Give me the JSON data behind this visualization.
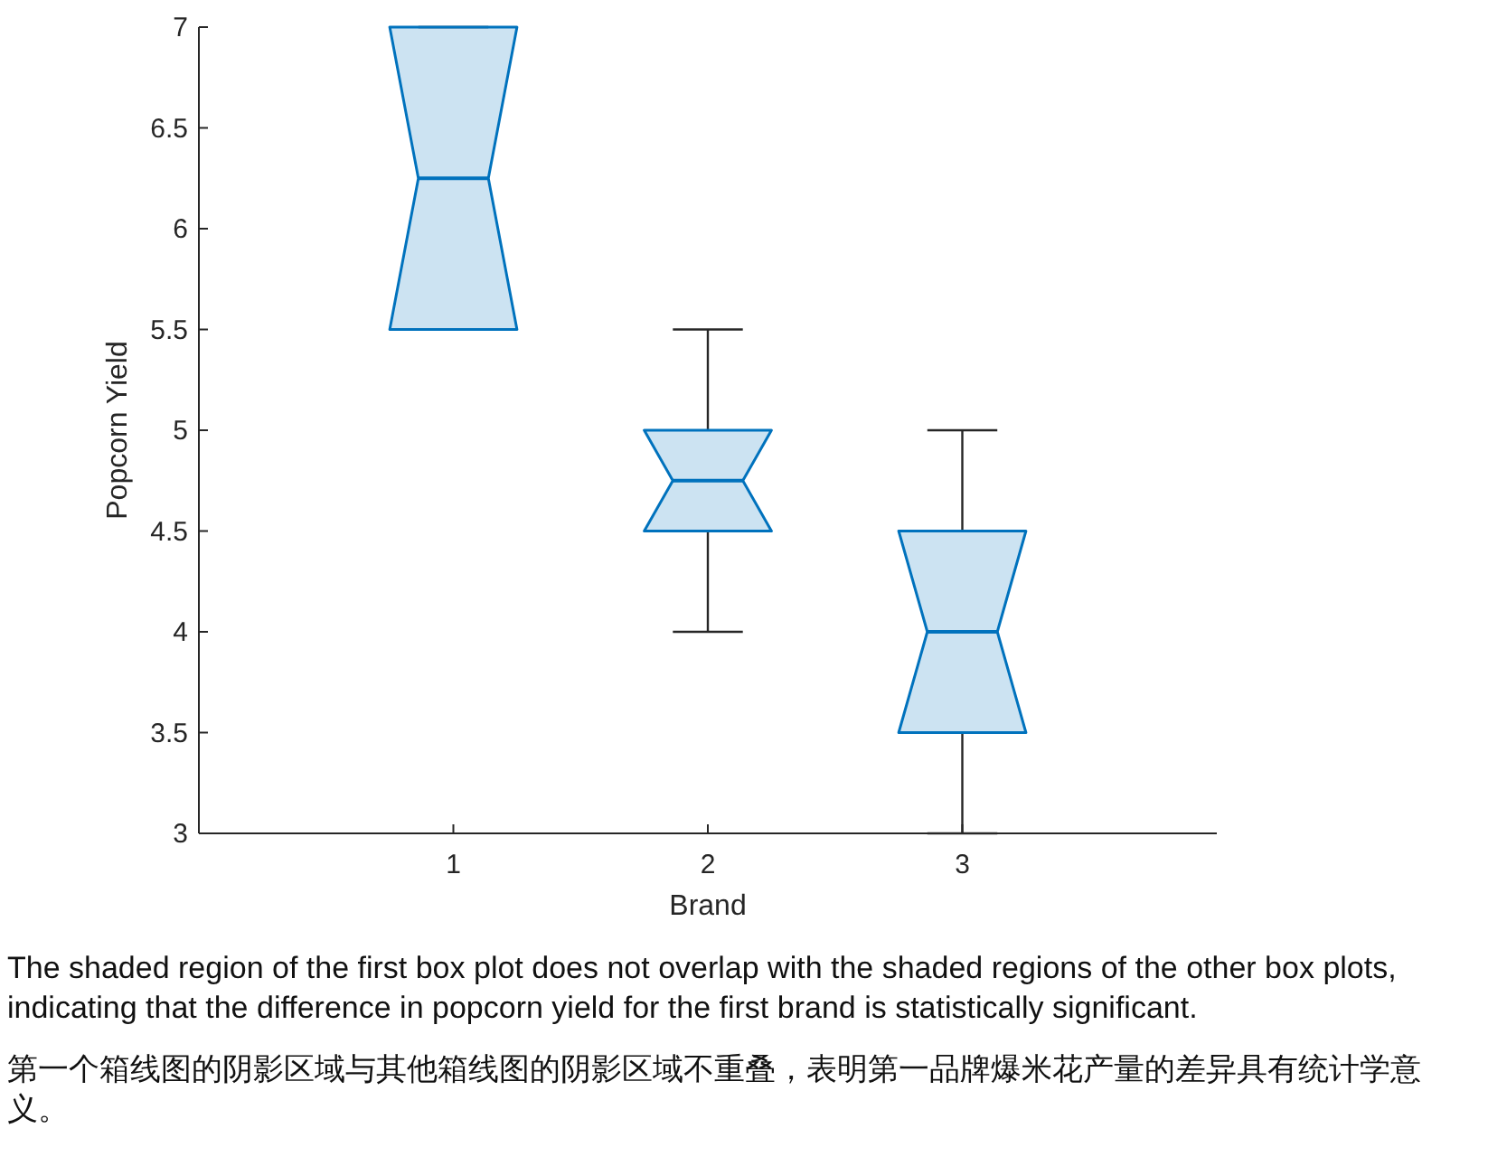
{
  "chart_data": {
    "type": "box",
    "xlabel": "Brand",
    "ylabel": "Popcorn Yield",
    "categories": [
      "1",
      "2",
      "3"
    ],
    "color": "#0072bd",
    "boxes": [
      {
        "low": 5.5,
        "q1": 5.5,
        "median": 6.25,
        "q3": 7,
        "high": 7
      },
      {
        "low": 4,
        "q1": 4.5,
        "median": 4.75,
        "q3": 5,
        "high": 5.5
      },
      {
        "low": 3,
        "q1": 3.5,
        "median": 4,
        "q3": 4.5,
        "high": 5
      }
    ],
    "ylim": [
      3,
      7
    ],
    "yticks": [
      3,
      3.5,
      4,
      4.5,
      5,
      5.5,
      6,
      6.5,
      7
    ],
    "annotations": [
      "The shaded region of the first box plot does not overlap with the shaded regions of the other box plots, indicating that the difference in popcorn yield for the first brand is statistically significant.",
      "第一个箱线图的阴影区域与其他箱线图的阴影区域不重叠，表明第一品牌爆米花产量的差异具有统计学意义。"
    ]
  }
}
